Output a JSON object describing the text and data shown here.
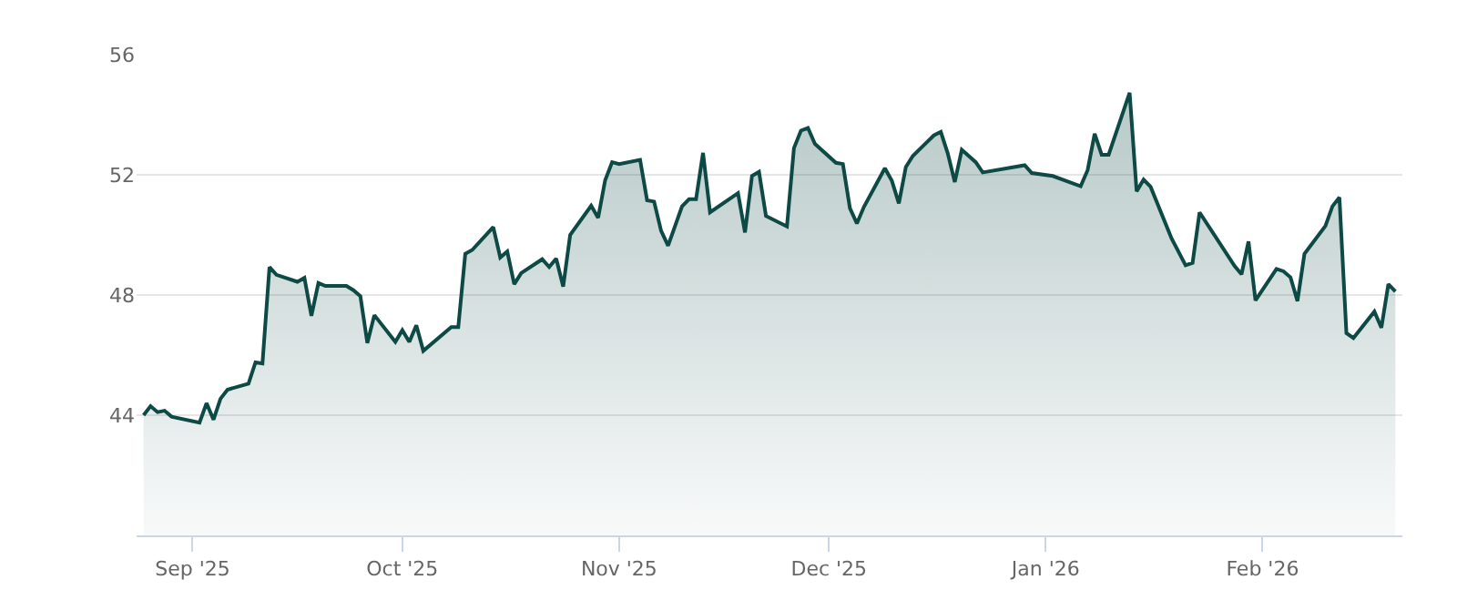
{
  "chart_data": {
    "type": "area",
    "grid": "y",
    "xlim": [
      "2025-08-24",
      "2026-02-21"
    ],
    "xticks": [
      {
        "value": "2025-09-01",
        "label": "Sep '25"
      },
      {
        "value": "2025-10-01",
        "label": "Oct '25"
      },
      {
        "value": "2025-11-01",
        "label": "Nov '25"
      },
      {
        "value": "2025-12-01",
        "label": "Dec '25"
      },
      {
        "value": "2026-01-01",
        "label": "Jan '26"
      },
      {
        "value": "2026-02-01",
        "label": "Feb '26"
      }
    ],
    "ylim": [
      40,
      56
    ],
    "yticks": [
      44,
      48,
      52,
      56
    ],
    "x": [
      "2025-08-25",
      "2025-08-26",
      "2025-08-27",
      "2025-08-28",
      "2025-08-29",
      "2025-09-02",
      "2025-09-03",
      "2025-09-04",
      "2025-09-05",
      "2025-09-06",
      "2025-09-09",
      "2025-09-10",
      "2025-09-11",
      "2025-09-12",
      "2025-09-13",
      "2025-09-16",
      "2025-09-17",
      "2025-09-18",
      "2025-09-19",
      "2025-09-20",
      "2025-09-23",
      "2025-09-24",
      "2025-09-25",
      "2025-09-26",
      "2025-09-27",
      "2025-09-30",
      "2025-10-01",
      "2025-10-02",
      "2025-10-03",
      "2025-10-04",
      "2025-10-08",
      "2025-10-09",
      "2025-10-10",
      "2025-10-11",
      "2025-10-14",
      "2025-10-15",
      "2025-10-16",
      "2025-10-17",
      "2025-10-18",
      "2025-10-21",
      "2025-10-22",
      "2025-10-23",
      "2025-10-24",
      "2025-10-25",
      "2025-10-28",
      "2025-10-29",
      "2025-10-30",
      "2025-10-31",
      "2025-11-01",
      "2025-11-04",
      "2025-11-05",
      "2025-11-06",
      "2025-11-07",
      "2025-11-08",
      "2025-11-10",
      "2025-11-11",
      "2025-11-12",
      "2025-11-13",
      "2025-11-14",
      "2025-11-18",
      "2025-11-19",
      "2025-11-20",
      "2025-11-21",
      "2025-11-22",
      "2025-11-25",
      "2025-11-26",
      "2025-11-27",
      "2025-11-28",
      "2025-11-29",
      "2025-12-02",
      "2025-12-03",
      "2025-12-04",
      "2025-12-05",
      "2025-12-06",
      "2025-12-09",
      "2025-12-10",
      "2025-12-11",
      "2025-12-12",
      "2025-12-13",
      "2025-12-16",
      "2025-12-17",
      "2025-12-18",
      "2025-12-19",
      "2025-12-20",
      "2025-12-22",
      "2025-12-23",
      "2025-12-29",
      "2025-12-30",
      "2026-01-02",
      "2026-01-06",
      "2026-01-07",
      "2026-01-08",
      "2026-01-09",
      "2026-01-10",
      "2026-01-13",
      "2026-01-14",
      "2026-01-15",
      "2026-01-16",
      "2026-01-19",
      "2026-01-21",
      "2026-01-22",
      "2026-01-23",
      "2026-01-28",
      "2026-01-29",
      "2026-01-30",
      "2026-01-31",
      "2026-02-03",
      "2026-02-04",
      "2026-02-05",
      "2026-02-06",
      "2026-02-07",
      "2026-02-10",
      "2026-02-11",
      "2026-02-12",
      "2026-02-13",
      "2026-02-14",
      "2026-02-17",
      "2026-02-18",
      "2026-02-19",
      "2026-02-20"
    ],
    "series": [
      {
        "color": "#0e4a45",
        "values": [
          44.0,
          44.3,
          44.1,
          44.15,
          43.95,
          43.75,
          44.4,
          43.85,
          44.55,
          44.85,
          45.05,
          45.76,
          45.72,
          48.93,
          48.67,
          48.44,
          48.57,
          47.31,
          48.4,
          48.3,
          48.3,
          48.16,
          47.96,
          46.4,
          47.33,
          46.44,
          46.83,
          46.44,
          46.99,
          46.14,
          46.93,
          46.93,
          49.37,
          49.5,
          50.26,
          49.25,
          49.45,
          48.36,
          48.73,
          49.19,
          48.93,
          49.21,
          48.28,
          50.0,
          50.97,
          50.57,
          51.82,
          52.42,
          52.36,
          52.5,
          51.15,
          51.11,
          50.14,
          49.64,
          50.95,
          51.19,
          51.19,
          52.73,
          50.75,
          51.39,
          50.08,
          51.96,
          52.1,
          50.63,
          50.28,
          52.89,
          53.47,
          53.56,
          53.03,
          52.4,
          52.36,
          50.89,
          50.38,
          50.93,
          52.22,
          51.8,
          51.05,
          52.26,
          52.63,
          53.31,
          53.43,
          52.71,
          51.76,
          52.83,
          52.42,
          52.08,
          52.32,
          52.06,
          51.96,
          51.62,
          52.16,
          53.37,
          52.67,
          52.67,
          54.73,
          51.45,
          51.84,
          51.6,
          49.88,
          48.99,
          49.07,
          50.75,
          48.97,
          48.69,
          49.78,
          47.82,
          48.87,
          48.79,
          48.59,
          47.8,
          49.37,
          50.3,
          50.95,
          51.25,
          46.73,
          46.57,
          47.45,
          46.91,
          48.36,
          48.12
        ]
      }
    ]
  }
}
